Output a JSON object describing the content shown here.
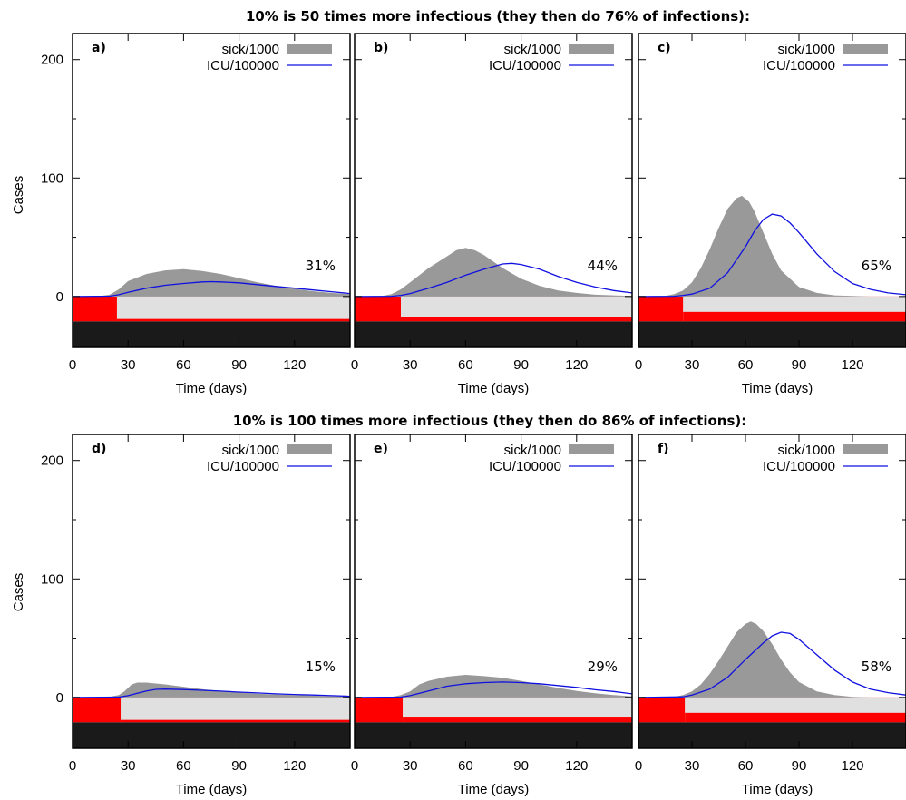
{
  "figure": {
    "row_titles": [
      "10% is 50 times more infectious (they then do 76% of infections):",
      "10% is 100 times more infectious (they then do 86% of infections):"
    ],
    "ylabel": "Cases",
    "xlabel": "Time (days)",
    "legend": {
      "sick_label": "sick/1000",
      "icu_label": "ICU/100000"
    },
    "colors": {
      "sick": "#999999",
      "icu": "#1010e0",
      "lockdown": "#ff0000",
      "open": "#e0e0e0",
      "base": "#1a1a1a"
    }
  },
  "chart_data": [
    {
      "type": "area",
      "panel": "a)",
      "percent_label": "31%",
      "xlim": [
        0,
        150
      ],
      "ylim": [
        -43,
        222
      ],
      "xticks": [
        0,
        30,
        60,
        90,
        120
      ],
      "yticks": [
        0,
        100,
        200
      ],
      "intervention_end_day": 24,
      "intervention_level": "strong",
      "series": [
        {
          "name": "sick/1000",
          "x": [
            0,
            15,
            20,
            25,
            30,
            40,
            50,
            60,
            70,
            80,
            90,
            100,
            110,
            120,
            130,
            140,
            150
          ],
          "values": [
            0,
            0.5,
            1.5,
            6,
            13,
            19,
            22,
            23,
            21.5,
            19,
            15.5,
            12,
            9,
            6.5,
            4.5,
            3,
            2
          ]
        },
        {
          "name": "ICU/100000",
          "x": [
            0,
            20,
            25,
            30,
            40,
            50,
            60,
            70,
            75,
            80,
            90,
            100,
            110,
            120,
            130,
            140,
            150
          ],
          "values": [
            0,
            0.3,
            1.5,
            3.5,
            7,
            9.5,
            11,
            12.3,
            12.5,
            12.3,
            11.5,
            10,
            8.5,
            7,
            5.5,
            4,
            2.5
          ]
        }
      ]
    },
    {
      "type": "area",
      "panel": "b)",
      "percent_label": "44%",
      "xlim": [
        0,
        150
      ],
      "ylim": [
        -43,
        222
      ],
      "xticks": [
        0,
        30,
        60,
        90,
        120
      ],
      "yticks": [
        0,
        100,
        200
      ],
      "intervention_end_day": 25,
      "intervention_level": "medium",
      "series": [
        {
          "name": "sick/1000",
          "x": [
            0,
            15,
            20,
            25,
            30,
            40,
            50,
            55,
            60,
            65,
            70,
            80,
            90,
            100,
            110,
            120,
            130,
            140,
            150
          ],
          "values": [
            0,
            0.5,
            2,
            6,
            12,
            24,
            34,
            39,
            41,
            39,
            35,
            24,
            15,
            9,
            5,
            3,
            1.5,
            1,
            0.5
          ]
        },
        {
          "name": "ICU/100000",
          "x": [
            0,
            20,
            25,
            30,
            40,
            50,
            60,
            70,
            80,
            85,
            90,
            100,
            110,
            120,
            130,
            140,
            150
          ],
          "values": [
            0,
            0.2,
            1,
            2.5,
            7,
            12,
            18,
            23,
            27.5,
            28,
            27,
            23,
            17,
            12,
            8,
            5,
            3
          ]
        }
      ]
    },
    {
      "type": "area",
      "panel": "c)",
      "percent_label": "65%",
      "xlim": [
        0,
        150
      ],
      "ylim": [
        -43,
        222
      ],
      "xticks": [
        0,
        30,
        60,
        90,
        120
      ],
      "yticks": [
        0,
        100,
        200
      ],
      "intervention_end_day": 25,
      "intervention_level": "weak",
      "series": [
        {
          "name": "sick/1000",
          "x": [
            0,
            15,
            20,
            25,
            30,
            35,
            40,
            45,
            50,
            55,
            58,
            62,
            65,
            70,
            75,
            80,
            90,
            100,
            110,
            120,
            130,
            140,
            150
          ],
          "values": [
            0,
            0.5,
            2,
            5,
            12,
            24,
            40,
            58,
            74,
            83,
            85,
            80,
            72,
            54,
            36,
            22,
            8,
            3,
            1,
            0.5,
            0,
            0,
            0
          ]
        },
        {
          "name": "ICU/100000",
          "x": [
            0,
            20,
            25,
            30,
            40,
            50,
            60,
            65,
            70,
            75,
            80,
            85,
            90,
            100,
            110,
            120,
            130,
            140,
            150
          ],
          "values": [
            0,
            0.2,
            1,
            2,
            7,
            20,
            42,
            55,
            65,
            69.5,
            68,
            62,
            54,
            36,
            21,
            11,
            6,
            3,
            1.5
          ]
        }
      ]
    },
    {
      "type": "area",
      "panel": "d)",
      "percent_label": "15%",
      "xlim": [
        0,
        150
      ],
      "ylim": [
        -43,
        222
      ],
      "xticks": [
        0,
        30,
        60,
        90,
        120
      ],
      "yticks": [
        0,
        100,
        200
      ],
      "intervention_end_day": 26,
      "intervention_level": "strong",
      "series": [
        {
          "name": "sick/1000",
          "x": [
            0,
            20,
            25,
            28,
            32,
            35,
            40,
            50,
            60,
            70,
            80,
            90,
            100,
            110,
            120,
            130,
            140,
            150
          ],
          "values": [
            0,
            0.5,
            2,
            5,
            11,
            12.5,
            12.5,
            11,
            9,
            7,
            5.5,
            4.2,
            3.2,
            2.5,
            2,
            1.5,
            1,
            0.7
          ]
        },
        {
          "name": "ICU/100000",
          "x": [
            0,
            25,
            30,
            35,
            40,
            45,
            50,
            60,
            70,
            80,
            90,
            100,
            110,
            120,
            130,
            140,
            150
          ],
          "values": [
            0,
            0.3,
            1.5,
            3.5,
            5.5,
            6.8,
            7,
            6.6,
            6,
            5.3,
            4.5,
            3.8,
            3,
            2.5,
            2,
            1.5,
            1
          ]
        }
      ]
    },
    {
      "type": "area",
      "panel": "e)",
      "percent_label": "29%",
      "xlim": [
        0,
        150
      ],
      "ylim": [
        -43,
        222
      ],
      "xticks": [
        0,
        30,
        60,
        90,
        120
      ],
      "yticks": [
        0,
        100,
        200
      ],
      "intervention_end_day": 26,
      "intervention_level": "medium",
      "series": [
        {
          "name": "sick/1000",
          "x": [
            0,
            20,
            25,
            30,
            35,
            40,
            50,
            60,
            70,
            80,
            90,
            100,
            110,
            120,
            130,
            140,
            150
          ],
          "values": [
            0,
            0.5,
            2,
            5,
            11,
            14,
            17.5,
            19,
            18,
            16.5,
            14,
            11,
            8,
            5.5,
            3.5,
            2,
            1
          ]
        },
        {
          "name": "ICU/100000",
          "x": [
            0,
            25,
            30,
            40,
            50,
            60,
            70,
            80,
            90,
            100,
            110,
            120,
            130,
            140,
            150
          ],
          "values": [
            0,
            0.3,
            1.5,
            5.5,
            9.5,
            11.5,
            12.5,
            13,
            12.5,
            11.5,
            10,
            8.5,
            6.5,
            5,
            3
          ]
        }
      ]
    },
    {
      "type": "area",
      "panel": "f)",
      "percent_label": "58%",
      "xlim": [
        0,
        150
      ],
      "ylim": [
        -43,
        222
      ],
      "xticks": [
        0,
        30,
        60,
        90,
        120
      ],
      "yticks": [
        0,
        100,
        200
      ],
      "intervention_end_day": 26,
      "intervention_level": "weak",
      "series": [
        {
          "name": "sick/1000",
          "x": [
            0,
            20,
            25,
            30,
            35,
            40,
            45,
            50,
            55,
            60,
            63,
            66,
            70,
            75,
            80,
            85,
            90,
            100,
            110,
            120,
            130,
            140,
            150
          ],
          "values": [
            0,
            0.5,
            2,
            5,
            11,
            20,
            31,
            43,
            55,
            62,
            64,
            62,
            56,
            45,
            32,
            21,
            13,
            5,
            2,
            0.5,
            0,
            0,
            0
          ]
        },
        {
          "name": "ICU/100000",
          "x": [
            0,
            25,
            30,
            40,
            50,
            60,
            70,
            75,
            80,
            85,
            90,
            100,
            110,
            120,
            130,
            140,
            150
          ],
          "values": [
            0,
            0.5,
            2,
            7,
            17,
            32,
            46,
            52,
            55,
            54,
            49,
            36,
            23,
            13,
            7,
            4,
            2
          ]
        }
      ]
    }
  ]
}
